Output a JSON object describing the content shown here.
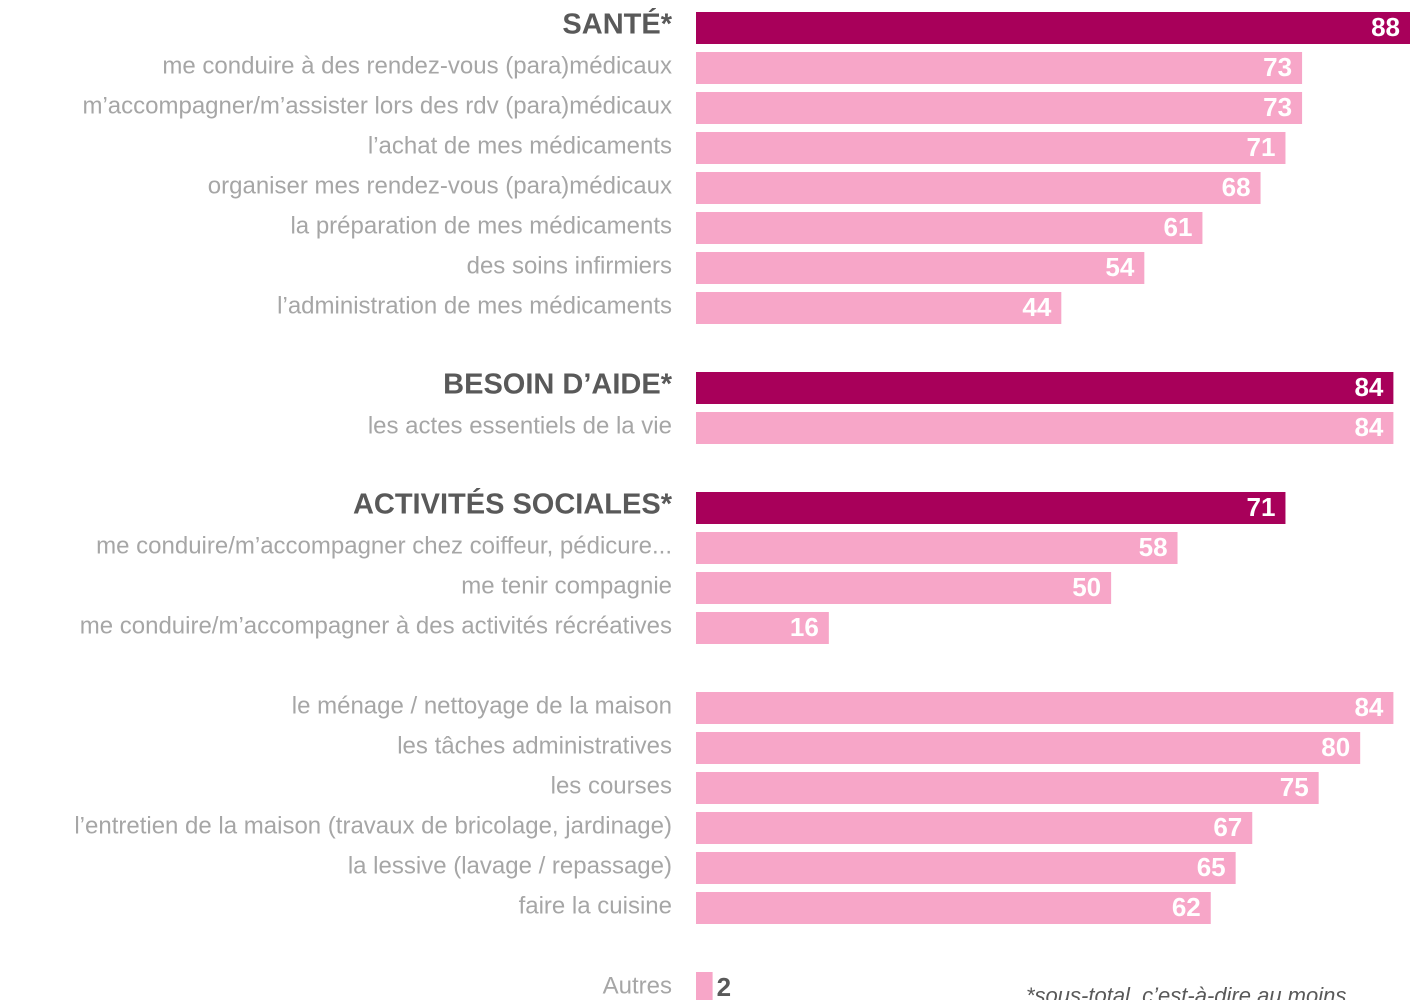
{
  "chart_data": {
    "type": "hbar",
    "categories": [
      "SANTÉ*",
      "me conduire à des rendez-vous (para)médicaux",
      "m’accompagner/m’assister lors des rdv (para)médicaux",
      "l’achat de mes médicaments",
      "organiser mes rendez-vous (para)médicaux",
      "la préparation de mes médicaments",
      "des soins infirmiers",
      "l’administration de mes médicaments",
      null,
      "BESOIN D’AIDE*",
      "les actes essentiels de la vie",
      null,
      "ACTIVITÉS SOCIALES*",
      "me conduire/m’accompagner chez coiffeur, pédicure...",
      "me tenir compagnie",
      "me conduire/m’accompagner à des activités récréatives",
      null,
      "le ménage / nettoyage de la maison",
      "les tâches administratives",
      "les courses",
      "l’entretien de la maison (travaux de bricolage, jardinage)",
      "la lessive (lavage / repassage)",
      "faire la cuisine",
      null,
      "Autres"
    ],
    "values": [
      88,
      73,
      73,
      71,
      68,
      61,
      54,
      44,
      null,
      84,
      84,
      null,
      71,
      58,
      50,
      16,
      null,
      84,
      80,
      75,
      67,
      65,
      62,
      null,
      2
    ],
    "highlighted": [
      true,
      false,
      false,
      false,
      false,
      false,
      false,
      false,
      false,
      true,
      false,
      false,
      true,
      false,
      false,
      false,
      false,
      false,
      false,
      false,
      false,
      false,
      false,
      false,
      false
    ],
    "color": "#f7a6c8",
    "highlight_color": "#a8005a",
    "xlim": [
      0,
      86
    ],
    "footnote": "*sous-total, c’est-à-dire au moins"
  }
}
